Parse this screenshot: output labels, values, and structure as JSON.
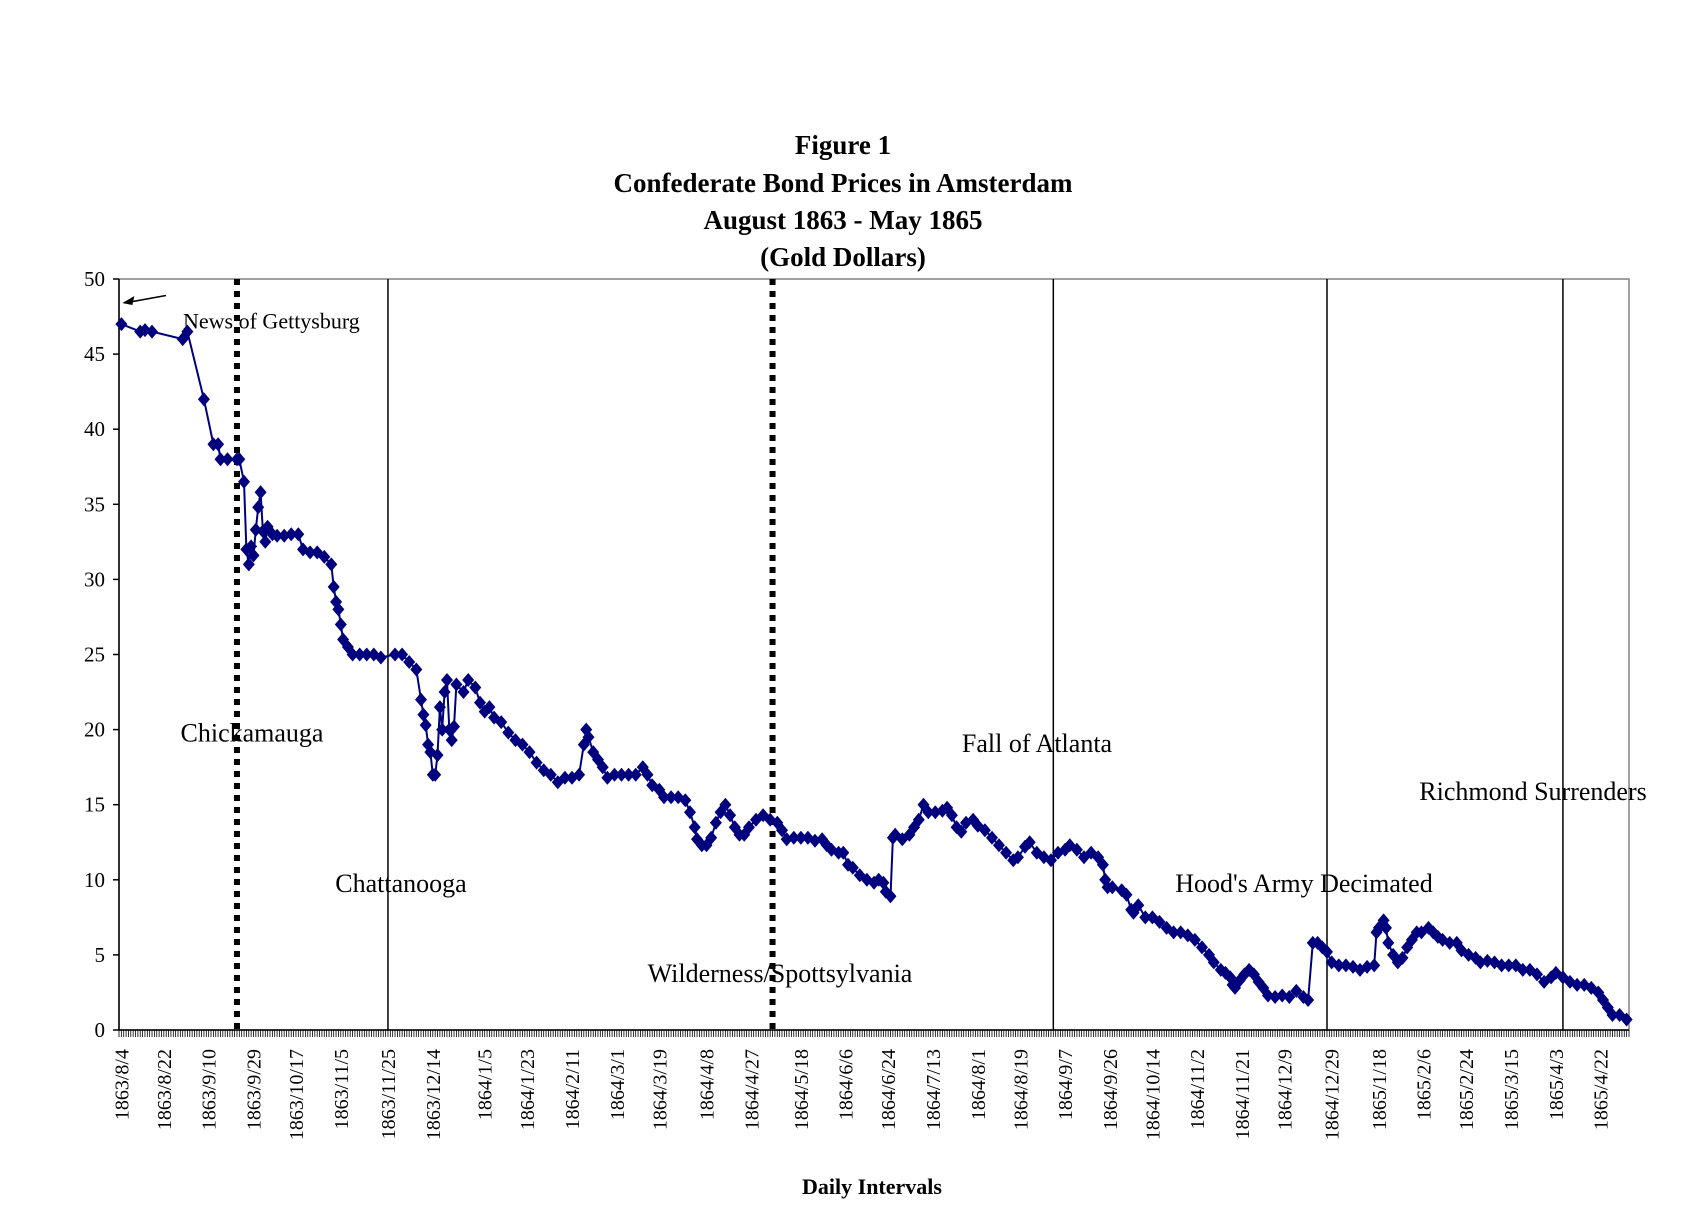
{
  "chart_data": {
    "type": "line",
    "title_lines": [
      "Figure 1",
      "Confederate Bond Prices in Amsterdam",
      "August 1863 - May 1865",
      "(Gold Dollars)"
    ],
    "xlabel": "Daily Intervals",
    "ylabel": "",
    "ylim": [
      0,
      50
    ],
    "yticks": [
      0,
      5,
      10,
      15,
      20,
      25,
      30,
      35,
      40,
      45,
      50
    ],
    "x_tick_labels": [
      "1863/8/4",
      "1863/8/22",
      "1863/9/10",
      "1863/9/29",
      "1863/10/17",
      "1863/11/5",
      "1863/11/25",
      "1863/12/14",
      "1864/1/5",
      "1864/1/23",
      "1864/2/11",
      "1864/3/1",
      "1864/3/19",
      "1864/4/8",
      "1864/4/27",
      "1864/5/18",
      "1864/6/6",
      "1864/6/24",
      "1864/7/13",
      "1864/8/1",
      "1864/8/19",
      "1864/9/7",
      "1864/9/26",
      "1864/10/14",
      "1864/11/2",
      "1864/11/21",
      "1864/12/9",
      "1864/12/29",
      "1865/1/18",
      "1865/2/6",
      "1865/2/24",
      "1865/3/15",
      "1865/4/3",
      "1865/4/22"
    ],
    "grid": false,
    "legend": "none",
    "colors": {
      "series": "#00007f",
      "lines": "#000000"
    },
    "events": [
      {
        "label": "News of Gettysburg",
        "date": "1863/8/4",
        "style": "arrow"
      },
      {
        "label": "Chickamauga",
        "date": "1863/9/22",
        "style": "dotted"
      },
      {
        "label": "Chattanooga",
        "date": "1863/11/25",
        "style": "solid"
      },
      {
        "label": "Wilderness/Spottsylvania",
        "date": "1864/5/6",
        "style": "dotted"
      },
      {
        "label": "Fall of Atlanta",
        "date": "1864/9/2",
        "style": "solid"
      },
      {
        "label": "Hood's Army Decimated",
        "date": "1864/12/27",
        "style": "solid"
      },
      {
        "label": "Richmond Surrenders",
        "date": "1865/4/6",
        "style": "solid"
      }
    ],
    "series": [
      {
        "values": [
          [
            "1863/8/4",
            47.0
          ],
          [
            "1863/8/12",
            46.5
          ],
          [
            "1863/8/14",
            46.6
          ],
          [
            "1863/8/17",
            46.5
          ],
          [
            "1863/8/30",
            46.0
          ],
          [
            "1863/9/1",
            46.5
          ],
          [
            "1863/9/8",
            42.0
          ],
          [
            "1863/9/12",
            39.0
          ],
          [
            "1863/9/14",
            39.0
          ],
          [
            "1863/9/15",
            38.0
          ],
          [
            "1863/9/18",
            38.0
          ],
          [
            "1863/9/22",
            38.0
          ],
          [
            "1863/9/23",
            38.0
          ],
          [
            "1863/9/25",
            36.5
          ],
          [
            "1863/9/26",
            32.0
          ],
          [
            "1863/9/27",
            31.0
          ],
          [
            "1863/9/28",
            32.2
          ],
          [
            "1863/9/29",
            31.6
          ],
          [
            "1863/9/30",
            33.3
          ],
          [
            "1863/10/1",
            34.8
          ],
          [
            "1863/10/2",
            35.8
          ],
          [
            "1863/10/3",
            33.2
          ],
          [
            "1863/10/4",
            32.5
          ],
          [
            "1863/10/5",
            33.5
          ],
          [
            "1863/10/7",
            33.0
          ],
          [
            "1863/10/9",
            32.9
          ],
          [
            "1863/10/12",
            32.9
          ],
          [
            "1863/10/15",
            33.0
          ],
          [
            "1863/10/18",
            33.0
          ],
          [
            "1863/10/20",
            32.0
          ],
          [
            "1863/10/23",
            31.8
          ],
          [
            "1863/10/26",
            31.8
          ],
          [
            "1863/10/29",
            31.5
          ],
          [
            "1863/11/1",
            31.0
          ],
          [
            "1863/11/2",
            29.5
          ],
          [
            "1863/11/3",
            28.5
          ],
          [
            "1863/11/4",
            28.0
          ],
          [
            "1863/11/5",
            27.0
          ],
          [
            "1863/11/6",
            26.0
          ],
          [
            "1863/11/8",
            25.5
          ],
          [
            "1863/11/10",
            25.0
          ],
          [
            "1863/11/13",
            25.0
          ],
          [
            "1863/11/16",
            25.0
          ],
          [
            "1863/11/19",
            25.0
          ],
          [
            "1863/11/22",
            24.8
          ],
          [
            "1863/11/28",
            25.0
          ],
          [
            "1863/12/1",
            25.0
          ],
          [
            "1863/12/4",
            24.5
          ],
          [
            "1863/12/7",
            24.0
          ],
          [
            "1863/12/9",
            22.0
          ],
          [
            "1863/12/10",
            21.0
          ],
          [
            "1863/12/11",
            20.3
          ],
          [
            "1863/12/12",
            19.0
          ],
          [
            "1863/12/13",
            18.5
          ],
          [
            "1863/12/14",
            17.0
          ],
          [
            "1863/12/15",
            17.0
          ],
          [
            "1863/12/16",
            18.3
          ],
          [
            "1863/12/17",
            21.5
          ],
          [
            "1863/12/18",
            20.0
          ],
          [
            "1863/12/19",
            22.5
          ],
          [
            "1863/12/20",
            23.3
          ],
          [
            "1863/12/21",
            20.0
          ],
          [
            "1863/12/22",
            19.3
          ],
          [
            "1863/12/23",
            20.2
          ],
          [
            "1863/12/24",
            23.0
          ],
          [
            "1863/12/27",
            22.5
          ],
          [
            "1863/12/29",
            23.3
          ],
          [
            "1864/1/1",
            22.8
          ],
          [
            "1864/1/3",
            21.8
          ],
          [
            "1864/1/5",
            21.2
          ],
          [
            "1864/1/7",
            21.5
          ],
          [
            "1864/1/9",
            20.8
          ],
          [
            "1864/1/12",
            20.5
          ],
          [
            "1864/1/15",
            19.8
          ],
          [
            "1864/1/18",
            19.3
          ],
          [
            "1864/1/21",
            19.0
          ],
          [
            "1864/1/24",
            18.5
          ],
          [
            "1864/1/27",
            17.8
          ],
          [
            "1864/1/30",
            17.3
          ],
          [
            "1864/2/2",
            17.0
          ],
          [
            "1864/2/5",
            16.5
          ],
          [
            "1864/2/8",
            16.8
          ],
          [
            "1864/2/11",
            16.8
          ],
          [
            "1864/2/14",
            17.0
          ],
          [
            "1864/2/16",
            19.0
          ],
          [
            "1864/2/17",
            20.0
          ],
          [
            "1864/2/18",
            19.5
          ],
          [
            "1864/2/20",
            18.5
          ],
          [
            "1864/2/22",
            18.0
          ],
          [
            "1864/2/24",
            17.5
          ],
          [
            "1864/2/26",
            16.8
          ],
          [
            "1864/2/29",
            17.0
          ],
          [
            "1864/3/3",
            17.0
          ],
          [
            "1864/3/6",
            17.0
          ],
          [
            "1864/3/9",
            17.0
          ],
          [
            "1864/3/12",
            17.5
          ],
          [
            "1864/3/14",
            17.0
          ],
          [
            "1864/3/16",
            16.3
          ],
          [
            "1864/3/19",
            16.0
          ],
          [
            "1864/3/21",
            15.5
          ],
          [
            "1864/3/24",
            15.5
          ],
          [
            "1864/3/27",
            15.5
          ],
          [
            "1864/3/30",
            15.3
          ],
          [
            "1864/4/1",
            14.5
          ],
          [
            "1864/4/3",
            13.5
          ],
          [
            "1864/4/4",
            12.7
          ],
          [
            "1864/4/6",
            12.3
          ],
          [
            "1864/4/8",
            12.3
          ],
          [
            "1864/4/10",
            12.8
          ],
          [
            "1864/4/12",
            13.8
          ],
          [
            "1864/4/14",
            14.5
          ],
          [
            "1864/4/16",
            15.0
          ],
          [
            "1864/4/18",
            14.3
          ],
          [
            "1864/4/20",
            13.5
          ],
          [
            "1864/4/22",
            13.0
          ],
          [
            "1864/4/24",
            13.0
          ],
          [
            "1864/4/26",
            13.5
          ],
          [
            "1864/4/29",
            14.0
          ],
          [
            "1864/5/2",
            14.3
          ],
          [
            "1864/5/5",
            14.0
          ],
          [
            "1864/5/8",
            13.8
          ],
          [
            "1864/5/10",
            13.3
          ],
          [
            "1864/5/12",
            12.7
          ],
          [
            "1864/5/15",
            12.8
          ],
          [
            "1864/5/18",
            12.8
          ],
          [
            "1864/5/21",
            12.8
          ],
          [
            "1864/5/24",
            12.6
          ],
          [
            "1864/5/27",
            12.7
          ],
          [
            "1864/5/29",
            12.3
          ],
          [
            "1864/5/31",
            12.0
          ],
          [
            "1864/6/3",
            11.8
          ],
          [
            "1864/6/5",
            11.8
          ],
          [
            "1864/6/7",
            11.0
          ],
          [
            "1864/6/9",
            10.8
          ],
          [
            "1864/6/12",
            10.3
          ],
          [
            "1864/6/15",
            10.0
          ],
          [
            "1864/6/18",
            9.8
          ],
          [
            "1864/6/20",
            10.0
          ],
          [
            "1864/6/22",
            9.8
          ],
          [
            "1864/6/23",
            9.2
          ],
          [
            "1864/6/25",
            8.9
          ],
          [
            "1864/6/26",
            12.8
          ],
          [
            "1864/6/27",
            13.0
          ],
          [
            "1864/6/30",
            12.7
          ],
          [
            "1864/7/3",
            13.0
          ],
          [
            "1864/7/5",
            13.5
          ],
          [
            "1864/7/7",
            14.0
          ],
          [
            "1864/7/9",
            15.0
          ],
          [
            "1864/7/11",
            14.5
          ],
          [
            "1864/7/14",
            14.5
          ],
          [
            "1864/7/17",
            14.6
          ],
          [
            "1864/7/19",
            14.8
          ],
          [
            "1864/7/21",
            14.3
          ],
          [
            "1864/7/23",
            13.5
          ],
          [
            "1864/7/25",
            13.2
          ],
          [
            "1864/7/27",
            13.8
          ],
          [
            "1864/7/30",
            14.0
          ],
          [
            "1864/8/1",
            13.6
          ],
          [
            "1864/8/4",
            13.3
          ],
          [
            "1864/8/7",
            12.8
          ],
          [
            "1864/8/10",
            12.3
          ],
          [
            "1864/8/13",
            11.8
          ],
          [
            "1864/8/16",
            11.3
          ],
          [
            "1864/8/18",
            11.5
          ],
          [
            "1864/8/21",
            12.2
          ],
          [
            "1864/8/23",
            12.5
          ],
          [
            "1864/8/26",
            11.8
          ],
          [
            "1864/8/29",
            11.5
          ],
          [
            "1864/9/1",
            11.3
          ],
          [
            "1864/9/4",
            11.8
          ],
          [
            "1864/9/7",
            12.0
          ],
          [
            "1864/9/9",
            12.3
          ],
          [
            "1864/9/12",
            12.0
          ],
          [
            "1864/9/15",
            11.5
          ],
          [
            "1864/9/18",
            11.8
          ],
          [
            "1864/9/21",
            11.5
          ],
          [
            "1864/9/23",
            11.0
          ],
          [
            "1864/9/24",
            10.0
          ],
          [
            "1864/9/25",
            9.5
          ],
          [
            "1864/9/27",
            9.5
          ],
          [
            "1864/10/1",
            9.3
          ],
          [
            "1864/10/3",
            9.0
          ],
          [
            "1864/10/5",
            8.0
          ],
          [
            "1864/10/6",
            7.8
          ],
          [
            "1864/10/8",
            8.3
          ],
          [
            "1864/10/11",
            7.5
          ],
          [
            "1864/10/14",
            7.5
          ],
          [
            "1864/10/17",
            7.2
          ],
          [
            "1864/10/20",
            6.8
          ],
          [
            "1864/10/23",
            6.5
          ],
          [
            "1864/10/26",
            6.5
          ],
          [
            "1864/10/29",
            6.3
          ],
          [
            "1864/11/1",
            6.0
          ],
          [
            "1864/11/4",
            5.5
          ],
          [
            "1864/11/7",
            5.0
          ],
          [
            "1864/11/9",
            4.5
          ],
          [
            "1864/11/12",
            4.0
          ],
          [
            "1864/11/14",
            3.8
          ],
          [
            "1864/11/16",
            3.5
          ],
          [
            "1864/11/17",
            3.0
          ],
          [
            "1864/11/18",
            2.8
          ],
          [
            "1864/11/20",
            3.3
          ],
          [
            "1864/11/22",
            3.7
          ],
          [
            "1864/11/24",
            4.0
          ],
          [
            "1864/11/26",
            3.7
          ],
          [
            "1864/11/28",
            3.2
          ],
          [
            "1864/11/30",
            2.8
          ],
          [
            "1864/12/2",
            2.3
          ],
          [
            "1864/12/5",
            2.2
          ],
          [
            "1864/12/8",
            2.3
          ],
          [
            "1864/12/11",
            2.2
          ],
          [
            "1864/12/14",
            2.6
          ],
          [
            "1864/12/17",
            2.2
          ],
          [
            "1864/12/19",
            2.0
          ],
          [
            "1864/12/21",
            5.8
          ],
          [
            "1864/12/23",
            5.8
          ],
          [
            "1864/12/25",
            5.5
          ],
          [
            "1864/12/27",
            5.2
          ],
          [
            "1864/12/29",
            4.5
          ],
          [
            "1865/1/1",
            4.3
          ],
          [
            "1865/1/4",
            4.3
          ],
          [
            "1865/1/7",
            4.2
          ],
          [
            "1865/1/10",
            4.0
          ],
          [
            "1865/1/13",
            4.2
          ],
          [
            "1865/1/16",
            4.3
          ],
          [
            "1865/1/17",
            6.5
          ],
          [
            "1865/1/18",
            6.8
          ],
          [
            "1865/1/20",
            7.3
          ],
          [
            "1865/1/21",
            6.8
          ],
          [
            "1865/1/22",
            5.8
          ],
          [
            "1865/1/24",
            5.0
          ],
          [
            "1865/1/26",
            4.5
          ],
          [
            "1865/1/28",
            4.8
          ],
          [
            "1865/1/30",
            5.5
          ],
          [
            "1865/2/1",
            6.0
          ],
          [
            "1865/2/3",
            6.5
          ],
          [
            "1865/2/5",
            6.5
          ],
          [
            "1865/2/8",
            6.8
          ],
          [
            "1865/2/10",
            6.5
          ],
          [
            "1865/2/12",
            6.2
          ],
          [
            "1865/2/14",
            6.0
          ],
          [
            "1865/2/17",
            5.8
          ],
          [
            "1865/2/20",
            5.8
          ],
          [
            "1865/2/22",
            5.3
          ],
          [
            "1865/2/25",
            5.0
          ],
          [
            "1865/2/28",
            4.8
          ],
          [
            "1865/3/2",
            4.5
          ],
          [
            "1865/3/5",
            4.6
          ],
          [
            "1865/3/8",
            4.5
          ],
          [
            "1865/3/11",
            4.3
          ],
          [
            "1865/3/14",
            4.3
          ],
          [
            "1865/3/17",
            4.3
          ],
          [
            "1865/3/20",
            4.0
          ],
          [
            "1865/3/23",
            4.0
          ],
          [
            "1865/3/26",
            3.7
          ],
          [
            "1865/3/29",
            3.2
          ],
          [
            "1865/4/1",
            3.5
          ],
          [
            "1865/4/3",
            3.8
          ],
          [
            "1865/4/6",
            3.5
          ],
          [
            "1865/4/9",
            3.2
          ],
          [
            "1865/4/12",
            3.0
          ],
          [
            "1865/4/15",
            3.0
          ],
          [
            "1865/4/18",
            2.8
          ],
          [
            "1865/4/21",
            2.5
          ],
          [
            "1865/4/23",
            2.0
          ],
          [
            "1865/4/25",
            1.5
          ],
          [
            "1865/4/27",
            1.0
          ],
          [
            "1865/4/30",
            1.0
          ],
          [
            "1865/5/3",
            0.7
          ]
        ]
      }
    ]
  }
}
